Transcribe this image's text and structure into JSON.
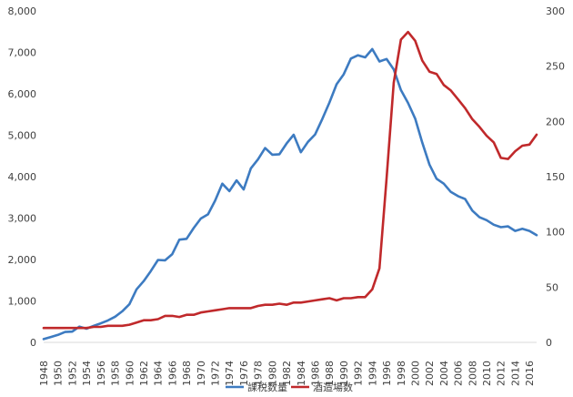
{
  "chart_data": {
    "type": "line",
    "x_ticks": [
      "1948",
      "1950",
      "1952",
      "1954",
      "1956",
      "1958",
      "1960",
      "1962",
      "1964",
      "1966",
      "1968",
      "1970",
      "1972",
      "1974",
      "1976",
      "1978",
      "1980",
      "1982",
      "1984",
      "1986",
      "1988",
      "1990",
      "1992",
      "1994",
      "1996",
      "1998",
      "2000",
      "2002",
      "2004",
      "2006",
      "2008",
      "2010",
      "2012",
      "2014",
      "2016"
    ],
    "y_left": {
      "ylim": [
        0,
        8000
      ],
      "ticks": [
        "0",
        "1,000",
        "2,000",
        "3,000",
        "4,000",
        "5,000",
        "6,000",
        "7,000",
        "8,000"
      ]
    },
    "y_right": {
      "ylim": [
        0,
        300
      ],
      "ticks": [
        "0",
        "50",
        "100",
        "150",
        "200",
        "250",
        "300"
      ]
    },
    "legend_position": "bottom",
    "grid": false,
    "series": [
      {
        "name": "課税数量",
        "axis": "left",
        "color": "#3d7bc1",
        "x": [
          1948,
          1949,
          1950,
          1951,
          1952,
          1953,
          1954,
          1955,
          1956,
          1957,
          1958,
          1959,
          1960,
          1961,
          1962,
          1963,
          1964,
          1965,
          1966,
          1967,
          1968,
          1969,
          1970,
          1971,
          1972,
          1973,
          1974,
          1975,
          1976,
          1977,
          1978,
          1979,
          1980,
          1981,
          1982,
          1983,
          1984,
          1985,
          1986,
          1987,
          1988,
          1989,
          1990,
          1991,
          1992,
          1993,
          1994,
          1995,
          1996,
          1997,
          1998,
          1999,
          2000,
          2001,
          2002,
          2003,
          2004,
          2005,
          2006,
          2007,
          2008,
          2009,
          2010,
          2011,
          2012,
          2013,
          2014,
          2015,
          2016,
          2017
        ],
        "y": [
          80,
          130,
          180,
          250,
          260,
          380,
          330,
          400,
          460,
          530,
          620,
          750,
          920,
          1280,
          1480,
          1720,
          1990,
          1980,
          2130,
          2480,
          2500,
          2760,
          2990,
          3090,
          3420,
          3830,
          3650,
          3910,
          3690,
          4200,
          4420,
          4690,
          4530,
          4540,
          4800,
          5010,
          4590,
          4840,
          5020,
          5390,
          5790,
          6230,
          6470,
          6850,
          6930,
          6880,
          7080,
          6780,
          6840,
          6590,
          6090,
          5780,
          5400,
          4820,
          4290,
          3950,
          3830,
          3630,
          3530,
          3460,
          3180,
          3020,
          2950,
          2840,
          2780,
          2800,
          2690,
          2740,
          2690,
          2590
        ]
      },
      {
        "name": "酒造場数",
        "axis": "right",
        "color": "#c0292b",
        "x": [
          1948,
          1949,
          1950,
          1951,
          1952,
          1953,
          1954,
          1955,
          1956,
          1957,
          1958,
          1959,
          1960,
          1961,
          1962,
          1963,
          1964,
          1965,
          1966,
          1967,
          1968,
          1969,
          1970,
          1971,
          1972,
          1973,
          1974,
          1975,
          1976,
          1977,
          1978,
          1979,
          1980,
          1981,
          1982,
          1983,
          1984,
          1985,
          1986,
          1987,
          1988,
          1989,
          1990,
          1991,
          1992,
          1993,
          1994,
          1995,
          1996,
          1997,
          1998,
          1999,
          2000,
          2001,
          2002,
          2003,
          2004,
          2005,
          2006,
          2007,
          2008,
          2009,
          2010,
          2011,
          2012,
          2013,
          2014,
          2015,
          2016,
          2017
        ],
        "y": [
          13,
          13,
          13,
          13,
          13,
          13,
          13,
          14,
          14,
          15,
          15,
          15,
          16,
          18,
          20,
          20,
          21,
          24,
          24,
          23,
          25,
          25,
          27,
          28,
          29,
          30,
          31,
          31,
          31,
          31,
          33,
          34,
          34,
          35,
          34,
          36,
          36,
          37,
          38,
          39,
          40,
          38,
          40,
          40,
          41,
          41,
          48,
          67,
          148,
          235,
          274,
          281,
          273,
          255,
          245,
          243,
          233,
          228,
          220,
          212,
          202,
          195,
          187,
          181,
          167,
          166,
          173,
          178,
          179,
          188
        ]
      }
    ]
  }
}
